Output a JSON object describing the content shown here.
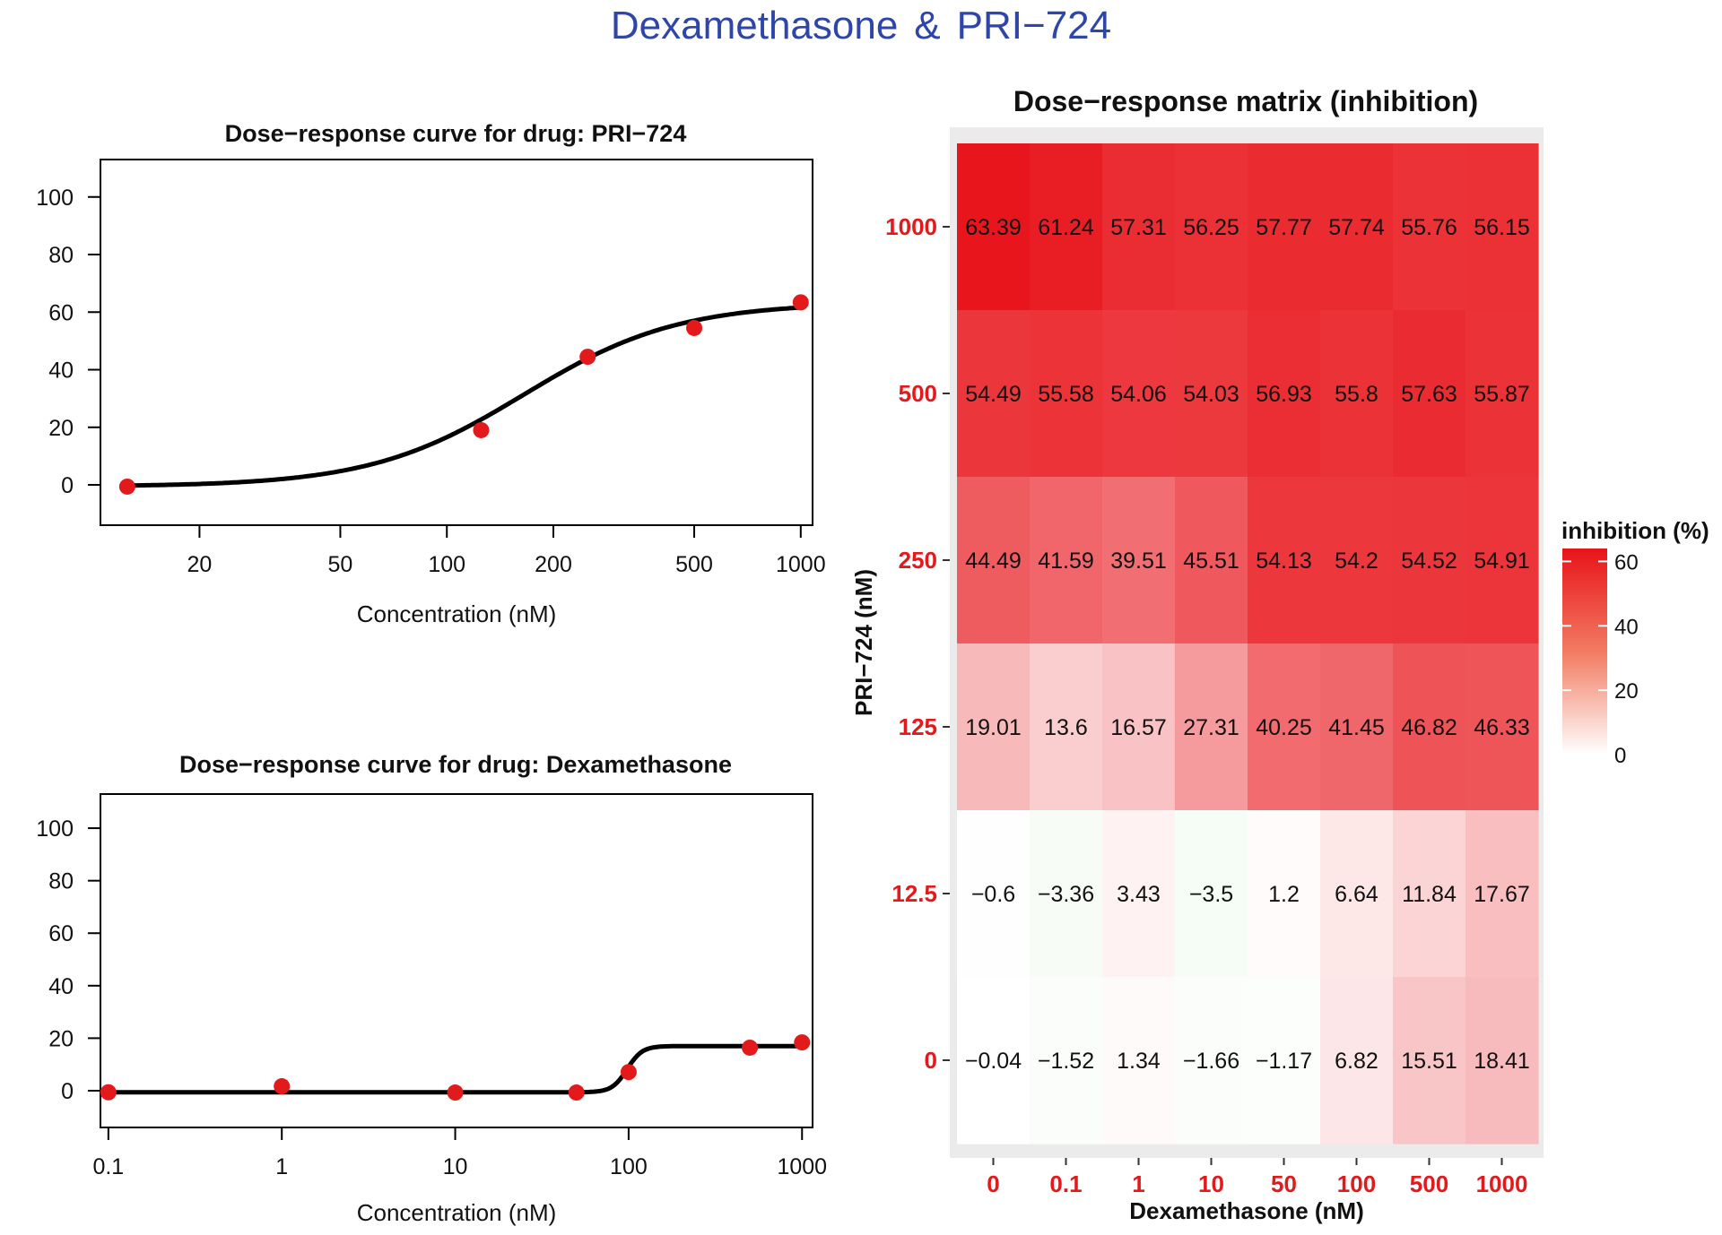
{
  "page": {
    "title_left": "Dexamethasone",
    "title_amp": "&",
    "title_right": "PRI−724"
  },
  "colors": {
    "title": "#2e46a8",
    "point": "#e31a1c",
    "curve": "#000000",
    "heat_high": "#e8141a",
    "heat_low": "#ffffff",
    "heat_neg": "#eef7ee",
    "axis_tick_red": "#e31a1c",
    "panel_bg": "#ebebeb"
  },
  "chart_data": [
    {
      "type": "scatter",
      "id": "pri",
      "title": "Dose−response curve for drug: PRI−724",
      "xlabel": "Concentration (nM)",
      "ylabel": "",
      "xscale": "log",
      "xlim": [
        10.5,
        1080
      ],
      "ylim": [
        -14,
        113
      ],
      "xticks": [
        20,
        50,
        100,
        200,
        500,
        1000
      ],
      "xtick_labels": [
        "20",
        "50",
        "100",
        "200",
        "500",
        "1000"
      ],
      "yticks": [
        0,
        20,
        40,
        60,
        80,
        100
      ],
      "ytick_labels": [
        "0",
        "20",
        "40",
        "60",
        "80",
        "100"
      ],
      "points": {
        "x": [
          12.5,
          125,
          250,
          500,
          1000
        ],
        "y": [
          -0.6,
          19.01,
          44.49,
          54.49,
          63.39
        ]
      },
      "curve": {
        "min": -0.6,
        "max": 63.3,
        "ec50": 165,
        "hill": 2.0
      }
    },
    {
      "type": "scatter",
      "id": "dex",
      "title": "Dose−response curve for drug: Dexamethasone",
      "xlabel": "Concentration (nM)",
      "ylabel": "",
      "xscale": "log",
      "xlim": [
        0.09,
        1150
      ],
      "ylim": [
        -14,
        113
      ],
      "xticks": [
        0.1,
        1,
        10,
        100,
        1000
      ],
      "xtick_labels": [
        "0.1",
        "1",
        "10",
        "100",
        "1000"
      ],
      "yticks": [
        0,
        20,
        40,
        60,
        80,
        100
      ],
      "ytick_labels": [
        "0",
        "20",
        "40",
        "60",
        "80",
        "100"
      ],
      "points": {
        "x": [
          0.1,
          1,
          10,
          50,
          100,
          500,
          1000
        ],
        "y": [
          -0.6,
          1.7,
          -0.7,
          -0.7,
          7.1,
          16.4,
          18.4
        ]
      },
      "curve": {
        "min": -0.6,
        "max": 17.0,
        "ec50": 98,
        "hill": 10
      }
    },
    {
      "type": "heatmap",
      "id": "matrix",
      "title": "Dose−response matrix (inhibition)",
      "xlabel": "Dexamethasone (nM)",
      "ylabel": "PRI−724 (nM)",
      "x_categories": [
        "0",
        "0.1",
        "1",
        "10",
        "50",
        "100",
        "500",
        "1000"
      ],
      "y_categories": [
        "1000",
        "500",
        "250",
        "125",
        "12.5",
        "0"
      ],
      "values": [
        [
          63.39,
          61.24,
          57.31,
          56.25,
          57.77,
          57.74,
          55.76,
          56.15
        ],
        [
          54.49,
          55.58,
          54.06,
          54.03,
          56.93,
          55.8,
          57.63,
          55.87
        ],
        [
          44.49,
          41.59,
          39.51,
          45.51,
          54.13,
          54.2,
          54.52,
          54.91
        ],
        [
          19.01,
          13.6,
          16.57,
          27.31,
          40.25,
          41.45,
          46.82,
          46.33
        ],
        [
          -0.6,
          -3.36,
          3.43,
          -3.5,
          1.2,
          6.64,
          11.84,
          17.67
        ],
        [
          -0.04,
          -1.52,
          1.34,
          -1.66,
          -1.17,
          6.82,
          15.51,
          18.41
        ]
      ],
      "value_labels": [
        [
          "63.39",
          "61.24",
          "57.31",
          "56.25",
          "57.77",
          "57.74",
          "55.76",
          "56.15"
        ],
        [
          "54.49",
          "55.58",
          "54.06",
          "54.03",
          "56.93",
          "55.8",
          "57.63",
          "55.87"
        ],
        [
          "44.49",
          "41.59",
          "39.51",
          "45.51",
          "54.13",
          "54.2",
          "54.52",
          "54.91"
        ],
        [
          "19.01",
          "13.6",
          "16.57",
          "27.31",
          "40.25",
          "41.45",
          "46.82",
          "46.33"
        ],
        [
          "−0.6",
          "−3.36",
          "3.43",
          "−3.5",
          "1.2",
          "6.64",
          "11.84",
          "17.67"
        ],
        [
          "−0.04",
          "−1.52",
          "1.34",
          "−1.66",
          "−1.17",
          "6.82",
          "15.51",
          "18.41"
        ]
      ],
      "legend": {
        "title": "inhibition (%)",
        "ticks": [
          60,
          40,
          20,
          0
        ],
        "tick_labels": [
          "60",
          "40",
          "20",
          "0"
        ],
        "range": [
          0,
          64
        ],
        "position": "right"
      }
    }
  ]
}
